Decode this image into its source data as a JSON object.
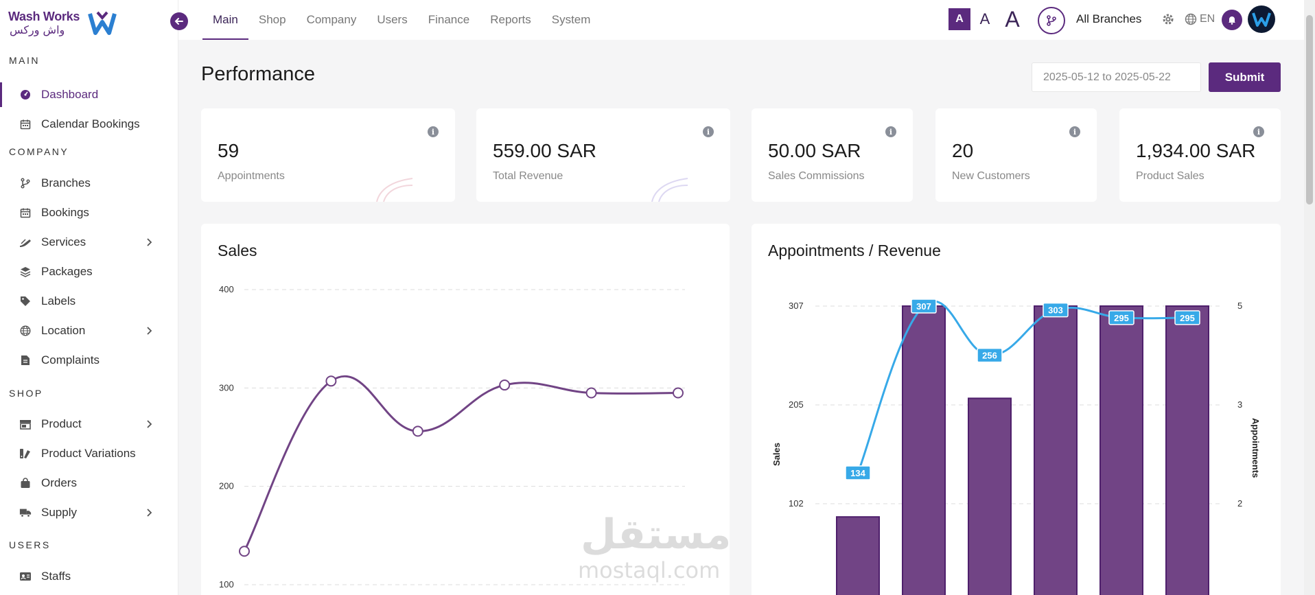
{
  "brand": {
    "name_en": "Wash Works",
    "name_ar": "واش وركس"
  },
  "sidebar": {
    "sections": [
      {
        "title": "MAIN",
        "items": [
          {
            "label": "Dashboard",
            "icon": "dashboard-icon",
            "active": true
          },
          {
            "label": "Calendar Bookings",
            "icon": "calendar-icon"
          }
        ]
      },
      {
        "title": "COMPANY",
        "items": [
          {
            "label": "Branches",
            "icon": "branch-icon"
          },
          {
            "label": "Bookings",
            "icon": "calendar-icon"
          },
          {
            "label": "Services",
            "icon": "services-icon",
            "expandable": true
          },
          {
            "label": "Packages",
            "icon": "layers-icon"
          },
          {
            "label": "Labels",
            "icon": "tag-icon"
          },
          {
            "label": "Location",
            "icon": "globe-icon",
            "expandable": true
          },
          {
            "label": "Complaints",
            "icon": "document-icon"
          }
        ]
      },
      {
        "title": "SHOP",
        "items": [
          {
            "label": "Product",
            "icon": "store-icon",
            "expandable": true
          },
          {
            "label": "Product Variations",
            "icon": "swatch-icon"
          },
          {
            "label": "Orders",
            "icon": "bag-icon"
          },
          {
            "label": "Supply",
            "icon": "truck-icon",
            "expandable": true
          }
        ]
      },
      {
        "title": "USERS",
        "items": [
          {
            "label": "Staffs",
            "icon": "id-card-icon"
          }
        ]
      }
    ]
  },
  "topnav": {
    "items": [
      "Main",
      "Shop",
      "Company",
      "Users",
      "Finance",
      "Reports",
      "System"
    ],
    "active": "Main",
    "font_sizes": [
      "A",
      "A",
      "A"
    ],
    "branch_label": "All Branches",
    "language": "EN"
  },
  "page": {
    "title": "Performance",
    "date_range": "2025-05-12 to 2025-05-22",
    "submit_label": "Submit"
  },
  "stats": [
    {
      "value": "59",
      "label": "Appointments"
    },
    {
      "value": "559.00 SAR",
      "label": "Total Revenue"
    },
    {
      "value": "50.00 SAR",
      "label": "Sales Commissions"
    },
    {
      "value": "20",
      "label": "New Customers"
    },
    {
      "value": "1,934.00 SAR",
      "label": "Product Sales"
    }
  ],
  "watermark": {
    "ar": "مستقل",
    "en": "mostaql.com"
  },
  "colors": {
    "primary": "#5b2a7e",
    "bar": "#714485",
    "line_blue": "#37a9e8"
  },
  "chart_data": [
    {
      "type": "line",
      "title": "Sales",
      "y_ticks": [
        100,
        200,
        300,
        400
      ],
      "ylim": [
        100,
        400
      ],
      "values": [
        134,
        307,
        256,
        303,
        295,
        295
      ],
      "grid": true
    },
    {
      "type": "bar",
      "title": "Appointments / Revenue",
      "ylabel": "Sales",
      "y2label": "Appointments",
      "left_ticks": [
        102,
        205,
        307
      ],
      "right_ticks": [
        2,
        3,
        5
      ],
      "bars": [
        {
          "name": "",
          "values": [
            1.8,
            5,
            3.6,
            5,
            5,
            5
          ]
        }
      ],
      "line": {
        "values": [
          134,
          307,
          256,
          303,
          295,
          295
        ],
        "labels": [
          "134",
          "307",
          "256",
          "303",
          "295",
          "295"
        ]
      },
      "grid": true
    }
  ]
}
